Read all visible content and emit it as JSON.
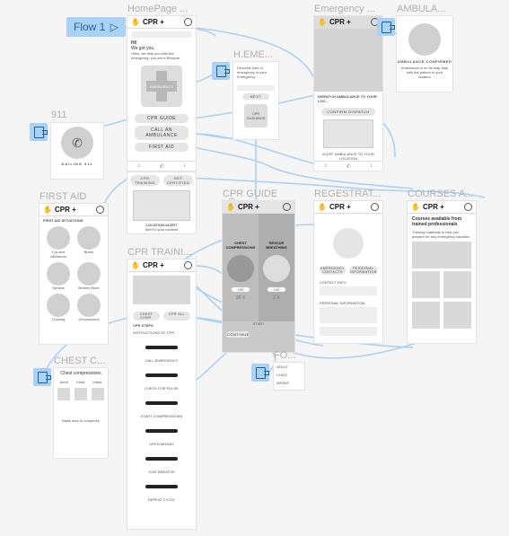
{
  "flow": {
    "label": "Flow 1"
  },
  "frames": {
    "homepage": "HomePage ...",
    "emergency": "Emergency ...",
    "ambulance": "AMBULA...",
    "h_emergency": "H.EME...",
    "n911": "911",
    "first_aid": "FIRST AID",
    "cpr_guide": "CPR GUIDE",
    "registration": "REGESTRAT...",
    "courses": "COURSES A...",
    "cpr_training": "CPR TRAINI...",
    "chest": "CHEST C...",
    "fo": "FO..."
  },
  "brand": {
    "name": "CPR +"
  },
  "home": {
    "greeting": "Hi!",
    "subtitle": "We got you",
    "body": "Hello, we help you with the emergency, you are a lifesaver",
    "emergency_label": "EMERGENCY",
    "btn_cpr": "CPR GUIDE",
    "btn_ambulance": "CALL AN AMBULANCE",
    "btn_first_aid": "FIRST AID",
    "location_alert": "LOCATION ALERT",
    "location_sub": "Alert to your location",
    "btn_cpr_training": "CPR TRAINING",
    "btn_get_certified": "GET CERTIFIED"
  },
  "emergency": {
    "dispatch": "DISPATCH AMBULANCE TO YOUR LOC...",
    "confirm": "CONFIRM DISPATCH",
    "alert": "ALERT AMBULANCE TO YOUR LOCATION"
  },
  "ambulance": {
    "title": "AMBULANCE CONFIRMED",
    "desc": "Ambulance is on its way, stay with the patient to your location"
  },
  "h_emergency": {
    "title": "Describe kind of emergency in your Emergency",
    "btn": "NEXT",
    "choice": "CPR GUIDANCE"
  },
  "n911": {
    "label": "DAILING 911"
  },
  "first_aid": {
    "title": "FIRST AID SITUATIONS",
    "items": [
      "Cut and Abrasions",
      "Burns",
      "Sprains",
      "Broken Bone",
      "Choking",
      "Unconscious"
    ]
  },
  "cpr_guide": {
    "left": "CHEST COMPRESSIONS",
    "right": "RESCUE BREATHING",
    "left_rate": "100",
    "right_rate": "100",
    "left_count": "30 X",
    "right_count": "2 X",
    "start": "START",
    "btn": "CONTINUE"
  },
  "registration": {
    "tab1": "EMERGENCY CONTACTS",
    "tab2": "PERSONAL INFORMATION",
    "contact_info": "CONTACT INFO",
    "personal_info": "PERSONAL INFORMATION"
  },
  "courses": {
    "title": "Courses available from trained professionals",
    "desc": "Training materials to help you prepare for any emergency situation"
  },
  "cpr_training": {
    "tab1": "CHEST COMP.",
    "tab2": "CPR ALL",
    "step_title": "CPR STEPS",
    "step_sub": "INSTRUCTIONS OF CPR",
    "steps": [
      "CALL EMERGENCY",
      "CHECK FOR PULSE",
      "START COMPRESSIONS",
      "OPEN AIRWAY",
      "GIVE BREATHS",
      "REPEAT CYCLE"
    ]
  },
  "chest": {
    "title": "Chest compressions",
    "cats": [
      "Adult",
      "Child",
      "Infant"
    ],
    "note": "Make sure to compress"
  },
  "fo": {
    "items": [
      "ADULT",
      "CHILD",
      "INFANT"
    ]
  }
}
